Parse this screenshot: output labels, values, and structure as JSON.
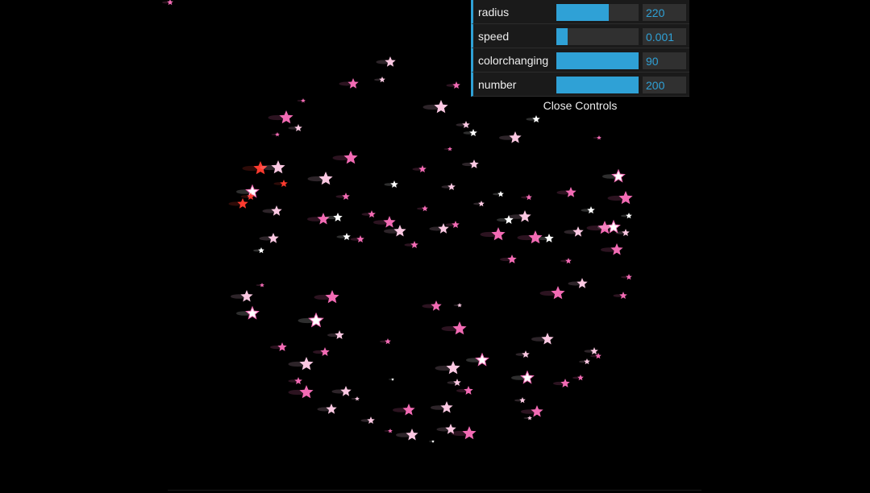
{
  "gui": {
    "controllers": [
      {
        "name": "radius",
        "value": "220",
        "fill": 0.64
      },
      {
        "name": "speed",
        "value": "0.001",
        "fill": 0.14
      },
      {
        "name": "colorchanging",
        "value": "90",
        "fill": 1.0
      },
      {
        "name": "number",
        "value": "200",
        "fill": 1.0
      }
    ],
    "close_label": "Close Controls"
  },
  "colors": {
    "accent": "#2fa1d6",
    "panel_bg": "#1a1a1a",
    "slider_bg": "#303030",
    "star_pink": "#f26bb4",
    "star_light": "#fbc8e2",
    "star_red": "#ff3b2f",
    "star_white": "#ffffff"
  }
}
